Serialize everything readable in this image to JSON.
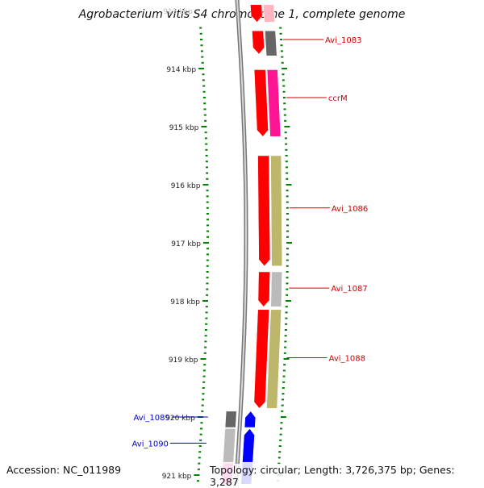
{
  "title": "Agrobacterium vitis S4 chromosome 1, complete genome",
  "footer": {
    "accession": "Accession: NC_011989",
    "topology": "Topology: circular; Length: 3,726,375 bp; Genes: 3,287"
  },
  "colors": {
    "red": "#ff0000",
    "pink": "#ff1493",
    "grey": "#777777",
    "light_grey": "#bbbbbb",
    "khaki": "#bdb76b",
    "blue": "#0000ff",
    "tick": "#008000",
    "label_red": "#cc0000",
    "label_blue": "#0000cc"
  },
  "scale": {
    "unit": "kbp",
    "labels": [
      {
        "kbp": 913,
        "text": "913 kbp"
      },
      {
        "kbp": 914,
        "text": "914 kbp"
      },
      {
        "kbp": 915,
        "text": "915 kbp"
      },
      {
        "kbp": 916,
        "text": "916 kbp"
      },
      {
        "kbp": 917,
        "text": "917 kbp"
      },
      {
        "kbp": 918,
        "text": "918 kbp"
      },
      {
        "kbp": 919,
        "text": "919 kbp"
      },
      {
        "kbp": 920,
        "text": "920 kbp"
      },
      {
        "kbp": 921,
        "text": "921 kbp"
      }
    ]
  },
  "features": [
    {
      "kind": "arrow",
      "track": "inner",
      "start_kbp": 912.9,
      "end_kbp": 913.2,
      "color": "#ff0000",
      "strand": "-"
    },
    {
      "kind": "box",
      "track": "outer",
      "start_kbp": 912.9,
      "end_kbp": 913.2,
      "color": "#ffb6c1"
    },
    {
      "kind": "arrow",
      "track": "inner",
      "start_kbp": 913.35,
      "end_kbp": 913.75,
      "color": "#ff0000",
      "strand": "-"
    },
    {
      "kind": "box",
      "track": "outer",
      "start_kbp": 913.35,
      "end_kbp": 913.78,
      "color": "#666666"
    },
    {
      "kind": "arrow",
      "track": "inner",
      "start_kbp": 914.02,
      "end_kbp": 915.17,
      "color": "#ff0000",
      "strand": "-"
    },
    {
      "kind": "box",
      "track": "outer",
      "start_kbp": 914.02,
      "end_kbp": 915.17,
      "color": "#ff1493"
    },
    {
      "kind": "arrow",
      "track": "inner",
      "start_kbp": 915.5,
      "end_kbp": 917.4,
      "color": "#ff0000",
      "strand": "-"
    },
    {
      "kind": "box",
      "track": "outer",
      "start_kbp": 915.5,
      "end_kbp": 917.4,
      "color": "#bdb76b"
    },
    {
      "kind": "arrow",
      "track": "inner",
      "start_kbp": 917.5,
      "end_kbp": 918.1,
      "color": "#ff0000",
      "strand": "-"
    },
    {
      "kind": "box",
      "track": "outer",
      "start_kbp": 917.5,
      "end_kbp": 918.1,
      "color": "#bbbbbb"
    },
    {
      "kind": "arrow",
      "track": "inner",
      "start_kbp": 918.15,
      "end_kbp": 919.85,
      "color": "#ff0000",
      "strand": "-"
    },
    {
      "kind": "box",
      "track": "outer",
      "start_kbp": 918.15,
      "end_kbp": 919.85,
      "color": "#bdb76b"
    },
    {
      "kind": "box",
      "track": "left_outer",
      "start_kbp": 919.9,
      "end_kbp": 920.18,
      "color": "#666666"
    },
    {
      "kind": "arrow",
      "track": "left_inner",
      "start_kbp": 919.9,
      "end_kbp": 920.18,
      "color": "#0000ff",
      "strand": "+"
    },
    {
      "kind": "box",
      "track": "left_outer",
      "start_kbp": 920.2,
      "end_kbp": 920.78,
      "color": "#bbbbbb"
    },
    {
      "kind": "arrow",
      "track": "left_inner",
      "start_kbp": 920.2,
      "end_kbp": 920.78,
      "color": "#0000ff",
      "strand": "+"
    },
    {
      "kind": "box",
      "track": "left_outer",
      "start_kbp": 920.8,
      "end_kbp": 921.3,
      "color": "#ff1493"
    },
    {
      "kind": "box",
      "track": "left_inner",
      "start_kbp": 920.8,
      "end_kbp": 921.3,
      "color": "#0000ff"
    }
  ],
  "gene_labels": [
    {
      "text": "Avi_1083",
      "kbp": 913.5,
      "side": "right",
      "color": "#cc0000"
    },
    {
      "text": "ccrM",
      "kbp": 914.5,
      "side": "right",
      "color": "#cc0000"
    },
    {
      "text": "Avi_1086",
      "kbp": 916.4,
      "side": "right",
      "color": "#cc0000"
    },
    {
      "text": "Avi_1087",
      "kbp": 917.78,
      "side": "right",
      "color": "#cc0000"
    },
    {
      "text": "Avi_1088",
      "kbp": 918.98,
      "side": "right",
      "color": "#cc0000"
    },
    {
      "text": "Avi_1089",
      "kbp": 920.0,
      "side": "left",
      "color": "#0000cc"
    },
    {
      "text": "Avi_1090",
      "kbp": 920.45,
      "side": "left",
      "color": "#0000cc"
    }
  ]
}
